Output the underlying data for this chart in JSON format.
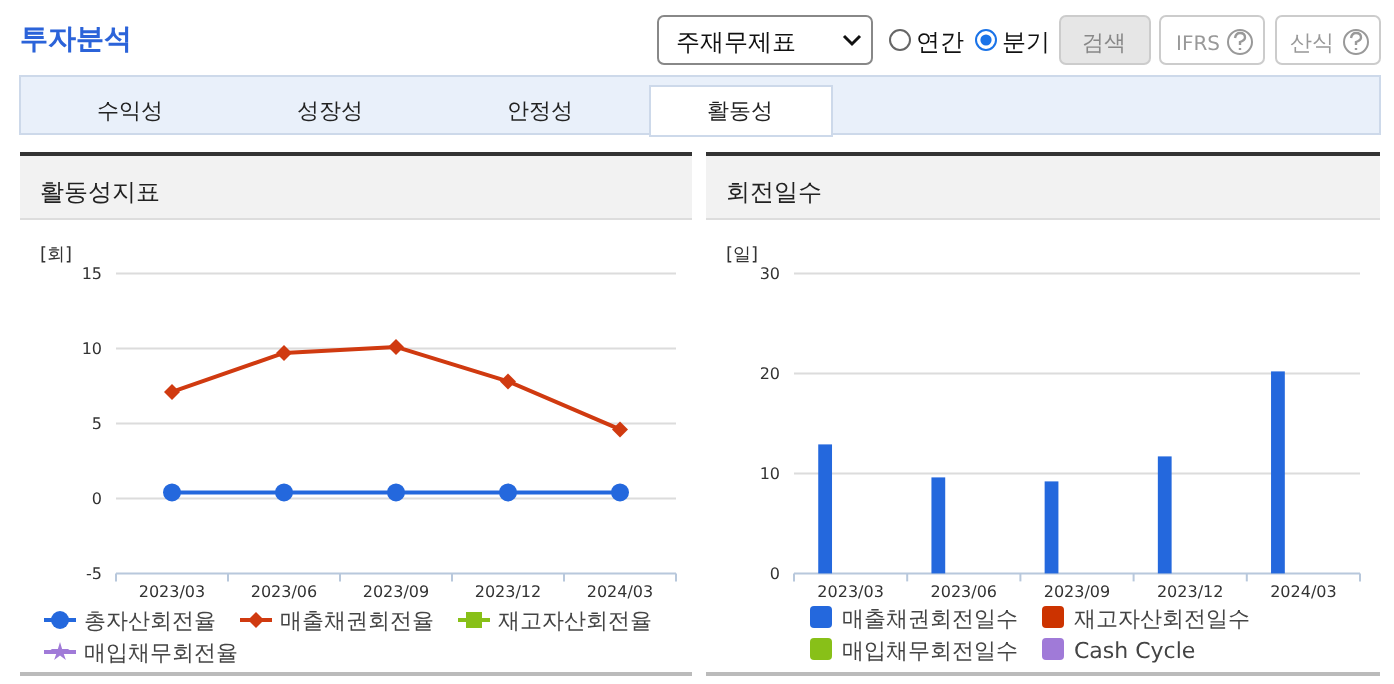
{
  "chart_data": [
    {
      "type": "other",
      "title": "투자분석",
      "annotations": [
        "주재무제표",
        "연간",
        "분기",
        "검색",
        "IFRS",
        "산식",
        "수익성",
        "성장성",
        "안정성",
        "활동성"
      ]
    },
    {
      "type": "line",
      "title": "활동성지표",
      "ylabel": "[회]",
      "categories": [
        "2023/03",
        "2023/06",
        "2023/09",
        "2023/12",
        "2024/03"
      ],
      "ylim": [
        -5,
        15
      ],
      "yticks": [
        -5,
        0,
        5,
        10,
        15
      ],
      "grid": "y",
      "legend": "bottom",
      "series": [
        {
          "name": "총자산회전율",
          "color": "#2468dd",
          "marker": "circle",
          "values": [
            0.4,
            0.4,
            0.4,
            0.4,
            0.4
          ]
        },
        {
          "name": "매출채권회전율",
          "color": "#d03a10",
          "marker": "diamond",
          "values": [
            7.1,
            9.7,
            10.1,
            7.8,
            4.6
          ]
        },
        {
          "name": "재고자산회전율",
          "color": "#88c018",
          "marker": "square",
          "values": [
            null,
            null,
            null,
            null,
            null
          ]
        },
        {
          "name": "매입채무회전율",
          "color": "#a07ad8",
          "marker": "star",
          "values": [
            null,
            null,
            null,
            null,
            null
          ]
        }
      ]
    },
    {
      "type": "bar",
      "title": "회전일수",
      "ylabel": "[일]",
      "categories": [
        "2023/03",
        "2023/06",
        "2023/09",
        "2023/12",
        "2024/03"
      ],
      "ylim": [
        0,
        30
      ],
      "yticks": [
        0,
        10,
        20,
        30
      ],
      "grid": "y",
      "legend": "bottom",
      "series": [
        {
          "name": "매출채권회전일수",
          "color": "#2468dd",
          "values": [
            12.9,
            9.6,
            9.2,
            11.7,
            20.2
          ]
        },
        {
          "name": "재고자산회전일수",
          "color": "#cc3300",
          "values": [
            null,
            null,
            null,
            null,
            null
          ]
        },
        {
          "name": "매입채무회전일수",
          "color": "#88c018",
          "values": [
            null,
            null,
            null,
            null,
            null
          ]
        },
        {
          "name": "Cash Cycle",
          "color": "#a07ad8",
          "values": [
            null,
            null,
            null,
            null,
            null
          ]
        }
      ]
    }
  ]
}
